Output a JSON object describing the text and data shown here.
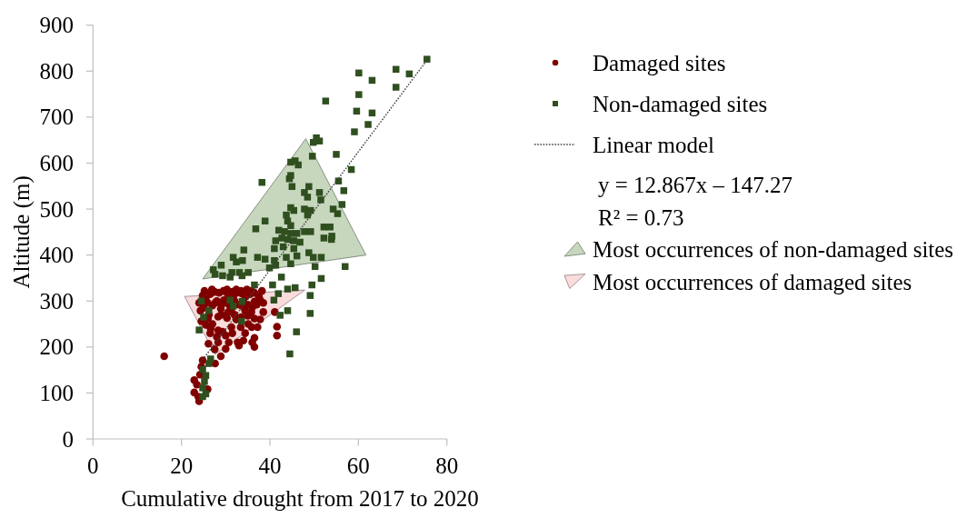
{
  "chart_data": {
    "type": "scatter",
    "xlabel": "Cumulative drought from 2017 to 2020",
    "ylabel": "Altitude (m)",
    "xlim": [
      0,
      80
    ],
    "xticks": [
      0,
      20,
      40,
      60,
      80
    ],
    "ylim": [
      0,
      900
    ],
    "yticks": [
      0,
      100,
      200,
      300,
      400,
      500,
      600,
      700,
      800,
      900
    ],
    "grid": false,
    "legend": "right",
    "annotations": [
      "y = 12.867x – 147.27",
      "R² = 0.73"
    ],
    "series": [
      {
        "name": "Damaged sites",
        "type": "scatter",
        "marker": "circle",
        "color": "#800000",
        "x": [
          16.1,
          22.9,
          22.9,
          23.5,
          23.8,
          24.0,
          24.2,
          24.5,
          24.8,
          25.9,
          27.6,
          28.9,
          27.5,
          30.0,
          33.0,
          36.0,
          36.5,
          26.1,
          28.3,
          30.7,
          32.7,
          34.0,
          36.5,
          28.0,
          30.0,
          26.5,
          31.5,
          34.4,
          29.3,
          28.3,
          26.6,
          31.3,
          33.4,
          35.9,
          37.2,
          41.6,
          41.6,
          25.5,
          27.0,
          35.1,
          24.5,
          32.4,
          37.8,
          26.0,
          30.3,
          36.5,
          33.5,
          28.3,
          35.0,
          26.2,
          29.0,
          32.0,
          30.5,
          35.8,
          38.5,
          41.1,
          24.3,
          34.4,
          28.9,
          31.3,
          25.0,
          36.0,
          31.0,
          33.7,
          27.0,
          29.0,
          33.0,
          35.0,
          37.0,
          24.0,
          25.9,
          27.6,
          30.0,
          38.5,
          36.5,
          28.0,
          32.0,
          34.0,
          29.6,
          37.8,
          25.5,
          31.7,
          34.5,
          37.5,
          24.8,
          26.5,
          30.5,
          35.5,
          33.7,
          28.5,
          32.5,
          36.5,
          27.5,
          31.5,
          25.2,
          29.5,
          33.5,
          35.8,
          38.2,
          26.9,
          30.3,
          32.4,
          34.8
        ],
        "values": [
          180,
          128,
          101,
          118,
          92,
          82,
          140,
          157,
          171,
          108,
          164,
          180,
          195,
          196,
          203,
          210,
          200,
          207,
          210,
          210,
          210,
          214,
          220,
          222,
          225,
          230,
          230,
          230,
          233,
          236,
          240,
          243,
          243,
          243,
          243,
          244,
          225,
          248,
          250,
          250,
          256,
          260,
          260,
          262,
          263,
          262,
          265,
          266,
          268,
          270,
          270,
          270,
          275,
          276,
          276,
          276,
          279,
          279,
          283,
          283,
          285,
          286,
          288,
          289,
          290,
          292,
          292,
          292,
          292,
          296,
          296,
          296,
          296,
          296,
          299,
          300,
          300,
          300,
          302,
          302,
          305,
          309,
          310,
          310,
          312,
          315,
          315,
          315,
          316,
          318,
          318,
          318,
          320,
          320,
          322,
          322,
          322,
          322,
          322,
          325,
          325,
          325,
          325
        ]
      },
      {
        "name": "Non-damaged sites",
        "type": "scatter",
        "marker": "square",
        "color": "#2f4f1f",
        "x": [
          24.8,
          25.5,
          24.8,
          25.2,
          25.5,
          24.8,
          26.2,
          26.6,
          44.5,
          46.0,
          24.0,
          33.6,
          42.3,
          49.1,
          26.2,
          44.0,
          31.7,
          33.7,
          31.0,
          40.9,
          49.1,
          41.9,
          44.0,
          45.7,
          36.5,
          40.6,
          49.5,
          51.6,
          31.0,
          42.6,
          33.7,
          29.3,
          31.4,
          33.1,
          35.1,
          27.6,
          27.2,
          39.9,
          50.2,
          57.0,
          29.0,
          41.3,
          44.7,
          32.4,
          33.8,
          41.0,
          38.9,
          31.7,
          37.2,
          43.7,
          49.8,
          51.6,
          46.1,
          48.8,
          34.1,
          41.0,
          45.4,
          43.0,
          41.3,
          45.4,
          46.8,
          44.0,
          53.9,
          42.7,
          52.2,
          54.0,
          44.7,
          46.1,
          43.3,
          47.8,
          49.2,
          42.0,
          36.8,
          52.2,
          53.6,
          44.7,
          38.9,
          44.0,
          43.7,
          48.5,
          55.3,
          45.4,
          49.2,
          47.8,
          54.3,
          44.7,
          56.3,
          51.5,
          48.5,
          47.8,
          51.2,
          56.7,
          45.0,
          48.8,
          38.2,
          55.5,
          44.4,
          44.7,
          58.4,
          46.4,
          44.7,
          45.7,
          49.6,
          55.0,
          49.8,
          51.2,
          50.5,
          59.1,
          62.2,
          63.1,
          59.6,
          52.6,
          60.1,
          68.5,
          63.1,
          71.5,
          60.1,
          68.5,
          75.5,
          24.5,
          25.0
        ],
        "values": [
          92,
          98,
          111,
          125,
          138,
          151,
          164,
          174,
          185,
          233,
          237,
          256,
          269,
          273,
          279,
          279,
          289,
          299,
          302,
          302,
          312,
          316,
          326,
          329,
          335,
          335,
          335,
          349,
          352,
          352,
          355,
          355,
          362,
          362,
          362,
          358,
          368,
          372,
          375,
          375,
          378,
          378,
          381,
          385,
          388,
          388,
          391,
          395,
          395,
          395,
          395,
          395,
          398,
          405,
          411,
          414,
          414,
          418,
          431,
          431,
          428,
          434,
          434,
          437,
          437,
          441,
          447,
          447,
          451,
          451,
          451,
          454,
          457,
          461,
          461,
          464,
          474,
          474,
          487,
          487,
          490,
          497,
          497,
          500,
          500,
          503,
          510,
          520,
          526,
          536,
          536,
          540,
          549,
          549,
          558,
          561,
          566,
          573,
          586,
          596,
          602,
          605,
          615,
          619,
          645,
          648,
          655,
          668,
          684,
          709,
          713,
          735,
          749,
          765,
          780,
          794,
          796,
          804,
          826,
          300,
          265
        ]
      },
      {
        "name": "Linear model",
        "type": "line",
        "line_style": "dotted",
        "marker": "none",
        "color": "#404040",
        "x": [
          24,
          75.5
        ],
        "values": [
          162,
          824
        ]
      },
      {
        "name": "Most occurrences of non-damaged sites",
        "type": "area",
        "color": "#c6d7bd",
        "x": [
          24.8,
          48.1,
          61.7
        ],
        "values": [
          null,
          null,
          null
        ],
        "lower": [
          348,
          381,
          400
        ],
        "upper": [
          348,
          653,
          400
        ]
      },
      {
        "name": "Most occurrences of damaged sites",
        "type": "area",
        "color": "#fadcdc",
        "x": [
          20.7,
          27.6,
          47.9
        ],
        "values": [
          null,
          null,
          null
        ],
        "lower": [
          310,
          184,
          324
        ],
        "upper": [
          310,
          313,
          324
        ]
      }
    ]
  }
}
